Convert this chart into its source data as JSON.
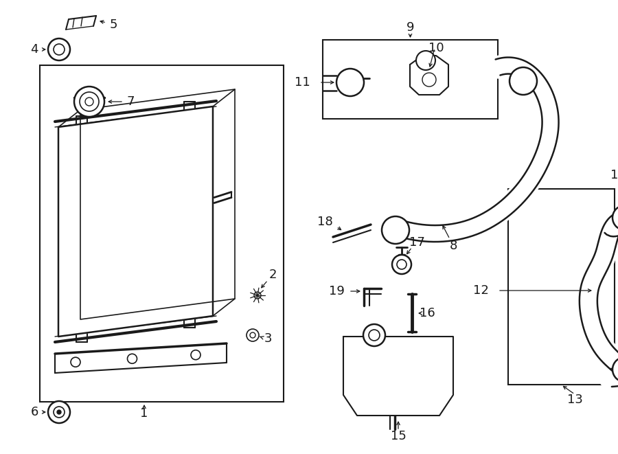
{
  "bg_color": "#ffffff",
  "line_color": "#1a1a1a",
  "text_color": "#1a1a1a",
  "fig_width": 9.0,
  "fig_height": 6.61,
  "dpi": 100
}
